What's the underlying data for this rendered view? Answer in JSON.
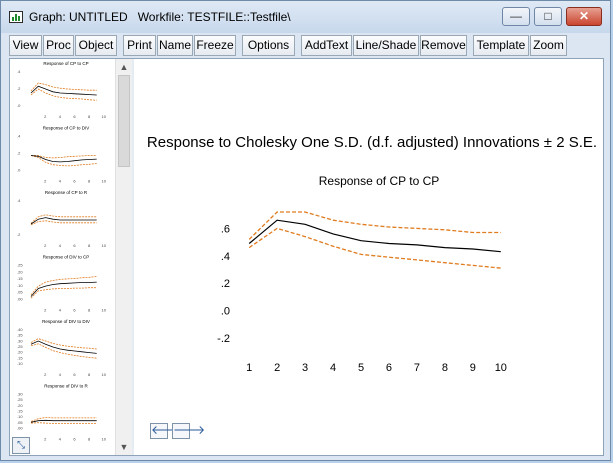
{
  "window": {
    "title": "Graph: UNTITLED   Workfile: TESTFILE::Testfile\\",
    "minimize_glyph": "—",
    "maximize_glyph": "□",
    "close_glyph": "✕"
  },
  "toolbar": {
    "buttons": [
      "View",
      "Proc",
      "Object",
      "Print",
      "Name",
      "Freeze",
      "Options",
      "AddText",
      "Line/Shade",
      "Remove",
      "Template",
      "Zoom"
    ]
  },
  "main": {
    "title": "Response to Cholesky One S.D. (d.f. adjusted) Innovations ± 2 S.E.",
    "nav_left_glyph": "🡐",
    "nav_right_glyph": "🡒"
  },
  "thumbnails": [
    {
      "label": "Response of CP to CP",
      "ticks": [
        ".4",
        ".2",
        ".0"
      ]
    },
    {
      "label": "Response of CP to DIV",
      "ticks": [
        ".4",
        ".2",
        ".0"
      ]
    },
    {
      "label": "Response of CP to R",
      "ticks": [
        ".4",
        ".2"
      ]
    },
    {
      "label": "Response of DIV to CP",
      "ticks": [
        ".25",
        ".20",
        ".15",
        ".10",
        ".05",
        ".00"
      ]
    },
    {
      "label": "Response of DIV to DIV",
      "ticks": [
        ".40",
        ".35",
        ".30",
        ".25",
        ".20",
        ".15",
        ".10"
      ]
    },
    {
      "label": "Response of DIV to R",
      "ticks": [
        ".30",
        ".25",
        ".20",
        ".15",
        ".10",
        ".05",
        ".00"
      ]
    }
  ],
  "chart_data": {
    "type": "line",
    "title": "Response of CP to CP",
    "x": [
      1,
      2,
      3,
      4,
      5,
      6,
      7,
      8,
      9,
      10
    ],
    "series": [
      {
        "values": [
          0.49,
          0.66,
          0.63,
          0.56,
          0.51,
          0.49,
          0.48,
          0.46,
          0.45,
          0.43
        ],
        "color": "#000000",
        "style": "solid"
      },
      {
        "values": [
          0.52,
          0.72,
          0.72,
          0.66,
          0.63,
          0.61,
          0.6,
          0.59,
          0.57,
          0.57
        ],
        "color": "#e07b1f",
        "style": "dashed"
      },
      {
        "values": [
          0.46,
          0.6,
          0.54,
          0.47,
          0.41,
          0.39,
          0.37,
          0.35,
          0.33,
          0.31
        ],
        "color": "#e07b1f",
        "style": "dashed"
      }
    ],
    "yticks": [
      ".6",
      ".4",
      ".2",
      ".0",
      "-.2"
    ],
    "ytick_values": [
      0.6,
      0.4,
      0.2,
      0.0,
      -0.2
    ],
    "ylim": [
      -0.28,
      0.8
    ],
    "xlim": [
      0.6,
      10.4
    ],
    "grid": false
  }
}
